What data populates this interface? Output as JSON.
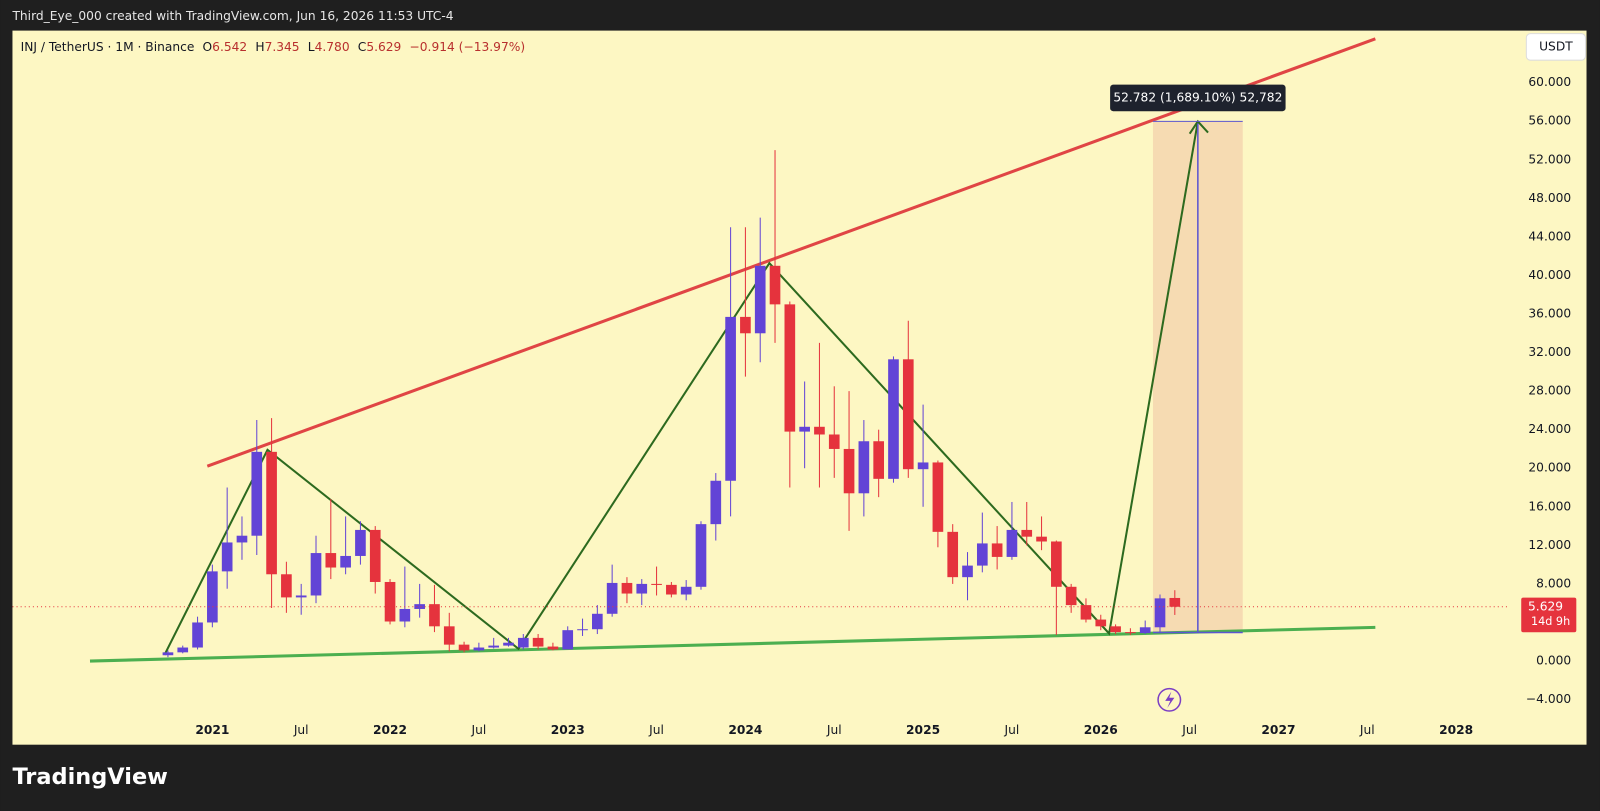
{
  "credit": "Third_Eye_000 created with TradingView.com, Jun 16, 2026 11:53 UTC-4",
  "legend": {
    "symbol": "INJ / TetherUS · 1M · Binance",
    "ohlc": [
      {
        "label": "O",
        "value": "6.542"
      },
      {
        "label": "H",
        "value": "7.345"
      },
      {
        "label": "L",
        "value": "4.780"
      },
      {
        "label": "C",
        "value": "5.629"
      }
    ],
    "change": "−0.914 (−13.97%)"
  },
  "currency_button": "USDT",
  "measurement_label": "52.782 (1,689.10%) 52,782",
  "brand": "TradingView",
  "chart_data": {
    "type": "candlestick",
    "categories": [
      null,
      null,
      null,
      null,
      null,
      null,
      null,
      null,
      null,
      null,
      null,
      null,
      null,
      "2021",
      null,
      null,
      null,
      null,
      null,
      "Jul",
      null,
      null,
      null,
      null,
      null,
      "2022",
      null,
      null,
      null,
      null,
      null,
      "Jul",
      null,
      null,
      null,
      null,
      null,
      "2023",
      null,
      null,
      null,
      null,
      null,
      "Jul",
      null,
      null,
      null,
      null,
      null,
      "2024",
      null,
      null,
      null,
      null,
      null,
      "Jul",
      null,
      null,
      null,
      null,
      null,
      "2025",
      null,
      null,
      null,
      null,
      null,
      "Jul",
      null,
      null,
      null,
      null,
      null,
      "2026",
      null,
      null,
      null,
      null,
      null,
      "Jul",
      null,
      null,
      null,
      null,
      null,
      "2027",
      null,
      null,
      null,
      null,
      null,
      "Jul",
      null,
      null,
      null,
      null,
      null,
      "2028",
      null,
      null,
      null
    ],
    "open": [
      null,
      null,
      null,
      null,
      null,
      null,
      null,
      null,
      null,
      null,
      0.6,
      0.9,
      1.4,
      4.0,
      9.3,
      12.3,
      13.0,
      21.7,
      9.0,
      6.6,
      6.8,
      11.2,
      9.7,
      10.9,
      13.6,
      8.2,
      4.1,
      5.4,
      5.9,
      3.6,
      1.7,
      1.1,
      1.4,
      1.6,
      1.4,
      2.4,
      1.5,
      1.2,
      3.2,
      3.3,
      4.9,
      8.1,
      7.0,
      8.0,
      7.9,
      6.9,
      7.7,
      14.2,
      18.7,
      35.7,
      34.0,
      41.0,
      37.0,
      23.8,
      24.3,
      23.5,
      22.0,
      17.4,
      22.8,
      18.9,
      31.3,
      19.9,
      20.6,
      13.4,
      8.7,
      9.9,
      12.2,
      10.8,
      13.6,
      12.9,
      12.4,
      7.7,
      5.8,
      4.3,
      3.6,
      3.0,
      2.9,
      3.5,
      6.542,
      null,
      null,
      null,
      null,
      null,
      null,
      null,
      null,
      null,
      null,
      null,
      null,
      null,
      null,
      null,
      null,
      null,
      null,
      null,
      null,
      null,
      null
    ],
    "high": [
      null,
      null,
      null,
      null,
      null,
      null,
      null,
      null,
      null,
      null,
      1.1,
      1.6,
      4.6,
      10.0,
      18.0,
      15.0,
      25.0,
      25.2,
      10.3,
      8.0,
      13.0,
      16.8,
      15.0,
      14.5,
      14.0,
      8.5,
      9.8,
      8.0,
      7.9,
      5.0,
      2.0,
      1.9,
      2.4,
      2.4,
      2.8,
      2.8,
      1.9,
      3.6,
      4.4,
      5.8,
      10.0,
      8.7,
      8.5,
      9.8,
      8.2,
      8.4,
      14.5,
      19.5,
      45.0,
      45.0,
      46.0,
      53.0,
      37.3,
      29.0,
      33.0,
      28.5,
      28.0,
      25.0,
      24.0,
      31.6,
      35.3,
      26.6,
      20.8,
      14.2,
      11.3,
      15.4,
      14.0,
      16.5,
      16.5,
      15.0,
      12.5,
      8.0,
      6.5,
      4.8,
      3.8,
      3.4,
      4.2,
      6.9,
      7.345,
      null,
      null,
      null,
      null,
      null,
      null,
      null,
      null,
      null,
      null,
      null,
      null,
      null,
      null,
      null,
      null,
      null,
      null,
      null,
      null,
      null,
      null
    ],
    "low": [
      null,
      null,
      null,
      null,
      null,
      null,
      null,
      null,
      null,
      null,
      0.4,
      0.8,
      1.2,
      3.5,
      7.5,
      10.5,
      11.0,
      5.5,
      5.0,
      4.8,
      6.0,
      8.5,
      9.0,
      10.0,
      7.0,
      3.8,
      3.5,
      4.5,
      3.0,
      1.0,
      0.9,
      1.0,
      1.3,
      1.5,
      1.2,
      1.2,
      1.1,
      1.2,
      2.6,
      2.8,
      4.6,
      6.0,
      5.8,
      6.8,
      6.6,
      6.3,
      7.4,
      12.5,
      15.0,
      29.5,
      31.0,
      33.0,
      18.0,
      20.0,
      18.0,
      19.0,
      13.5,
      15.0,
      17.0,
      18.5,
      19.0,
      16.0,
      11.8,
      8.0,
      6.3,
      9.2,
      9.5,
      10.5,
      12.0,
      11.5,
      2.7,
      5.0,
      4.0,
      3.2,
      2.8,
      2.7,
      2.8,
      3.0,
      4.78,
      null,
      null,
      null,
      null,
      null,
      null,
      null,
      null,
      null,
      null,
      null,
      null,
      null,
      null,
      null,
      null,
      null,
      null,
      null,
      null,
      null,
      null
    ],
    "close": [
      null,
      null,
      null,
      null,
      null,
      null,
      null,
      null,
      null,
      null,
      0.9,
      1.4,
      4.0,
      9.3,
      12.3,
      13.0,
      21.7,
      9.0,
      6.6,
      6.8,
      11.2,
      9.7,
      10.9,
      13.6,
      8.2,
      4.1,
      5.4,
      5.9,
      3.6,
      1.7,
      1.1,
      1.4,
      1.6,
      1.9,
      2.4,
      1.5,
      1.2,
      3.2,
      3.3,
      4.9,
      8.1,
      7.0,
      8.0,
      7.9,
      6.9,
      7.7,
      14.2,
      18.7,
      35.7,
      34.0,
      41.0,
      37.0,
      23.8,
      24.3,
      23.5,
      22.0,
      17.4,
      22.8,
      18.9,
      31.3,
      19.9,
      20.6,
      13.4,
      8.7,
      9.9,
      12.2,
      10.8,
      13.6,
      12.9,
      12.4,
      7.7,
      5.8,
      4.3,
      3.6,
      3.0,
      2.9,
      3.5,
      6.5,
      5.629,
      null,
      null,
      null,
      null,
      null,
      null,
      null,
      null,
      null,
      null,
      null,
      null,
      null,
      null,
      null,
      null,
      null,
      null,
      null,
      null,
      null,
      null
    ],
    "up_color": "#6244d6",
    "down_color": "#e5333d",
    "ylim": [
      -8.68,
      65.4
    ],
    "yticks": [
      {
        "value": 60,
        "label": "60.000"
      },
      {
        "value": 56,
        "label": "56.000"
      },
      {
        "value": 52,
        "label": "52.000"
      },
      {
        "value": 48,
        "label": "48.000"
      },
      {
        "value": 44,
        "label": "44.000"
      },
      {
        "value": 40,
        "label": "40.000"
      },
      {
        "value": 36,
        "label": "36.000"
      },
      {
        "value": 32,
        "label": "32.000"
      },
      {
        "value": 28,
        "label": "28.000"
      },
      {
        "value": 24,
        "label": "24.000"
      },
      {
        "value": 20,
        "label": "20.000"
      },
      {
        "value": 16,
        "label": "16.000"
      },
      {
        "value": 12,
        "label": "12.000"
      },
      {
        "value": 8,
        "label": "8.000"
      },
      {
        "value": 0,
        "label": "0.000"
      },
      {
        "value": -4,
        "label": "−4.000"
      }
    ],
    "grid": false,
    "bar_timer": "14d 9h"
  }
}
